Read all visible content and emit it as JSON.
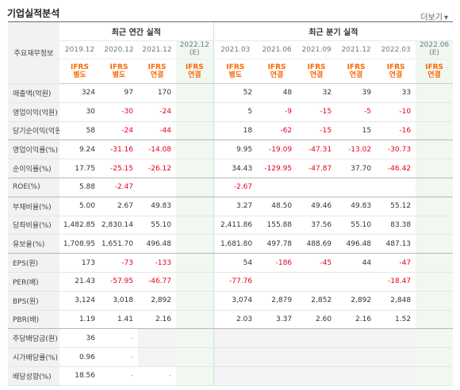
{
  "header": {
    "title": "기업실적분석",
    "more_label": "더보기",
    "more_arrow": "▾"
  },
  "table": {
    "corner_label": "주요재무정보",
    "annual_group": "최근 연간 실적",
    "quarter_group": "최근 분기 실적",
    "years": [
      {
        "line1": "2019.12",
        "line2": ""
      },
      {
        "line1": "2020.12",
        "line2": ""
      },
      {
        "line1": "2021.12",
        "line2": ""
      },
      {
        "line1": "2022.12",
        "line2": "(E)"
      },
      {
        "line1": "2021.03",
        "line2": ""
      },
      {
        "line1": "2021.06",
        "line2": ""
      },
      {
        "line1": "2021.09",
        "line2": ""
      },
      {
        "line1": "2021.12",
        "line2": ""
      },
      {
        "line1": "2022.03",
        "line2": ""
      },
      {
        "line1": "2022.06",
        "line2": "(E)"
      }
    ],
    "types": [
      {
        "line1": "IFRS",
        "line2": "별도"
      },
      {
        "line1": "IFRS",
        "line2": "별도"
      },
      {
        "line1": "IFRS",
        "line2": "연결"
      },
      {
        "line1": "IFRS",
        "line2": "연결"
      },
      {
        "line1": "IFRS",
        "line2": "별도"
      },
      {
        "line1": "IFRS",
        "line2": "연결"
      },
      {
        "line1": "IFRS",
        "line2": "연결"
      },
      {
        "line1": "IFRS",
        "line2": "연결"
      },
      {
        "line1": "IFRS",
        "line2": "연결"
      },
      {
        "line1": "IFRS",
        "line2": "연결"
      }
    ],
    "rows": [
      {
        "label": "매출액(억원)",
        "values": [
          "324",
          "97",
          "170",
          "",
          "52",
          "48",
          "32",
          "39",
          "33",
          ""
        ]
      },
      {
        "label": "영업이익(억원)",
        "values": [
          "30",
          "-30",
          "-24",
          "",
          "5",
          "-9",
          "-15",
          "-5",
          "-10",
          ""
        ]
      },
      {
        "label": "당기순이익(억원)",
        "values": [
          "58",
          "-24",
          "-44",
          "",
          "18",
          "-62",
          "-15",
          "15",
          "-16",
          ""
        ]
      },
      {
        "label": "영업이익률(%)",
        "values": [
          "9.24",
          "-31.16",
          "-14.08",
          "",
          "9.95",
          "-19.09",
          "-47.31",
          "-13.02",
          "-30.73",
          ""
        ]
      },
      {
        "label": "순이익률(%)",
        "values": [
          "17.75",
          "-25.15",
          "-26.12",
          "",
          "34.43",
          "-129.95",
          "-47.87",
          "37.70",
          "-46.42",
          ""
        ]
      },
      {
        "label": "ROE(%)",
        "values": [
          "5.88",
          "-2.47",
          "",
          "",
          "-2.67",
          "",
          "",
          "",
          "",
          ""
        ]
      },
      {
        "label": "부채비율(%)",
        "values": [
          "5.00",
          "2.67",
          "49.83",
          "",
          "3.27",
          "48.50",
          "49.46",
          "49.83",
          "55.12",
          ""
        ]
      },
      {
        "label": "당좌비율(%)",
        "values": [
          "1,482.85",
          "2,830.14",
          "55.10",
          "",
          "2,411.86",
          "155.88",
          "37.56",
          "55.10",
          "83.38",
          ""
        ]
      },
      {
        "label": "유보율(%)",
        "values": [
          "1,708.95",
          "1,651.70",
          "496.48",
          "",
          "1,681.80",
          "497.78",
          "488.69",
          "496.48",
          "487.13",
          ""
        ]
      },
      {
        "label": "EPS(원)",
        "values": [
          "173",
          "-73",
          "-133",
          "",
          "54",
          "-186",
          "-45",
          "44",
          "-47",
          ""
        ]
      },
      {
        "label": "PER(배)",
        "values": [
          "21.43",
          "-57.95",
          "-46.77",
          "",
          "-77.76",
          "",
          "",
          "",
          "-18.47",
          ""
        ]
      },
      {
        "label": "BPS(원)",
        "values": [
          "3,124",
          "3,018",
          "2,892",
          "",
          "3,074",
          "2,879",
          "2,852",
          "2,892",
          "2,848",
          ""
        ]
      },
      {
        "label": "PBR(배)",
        "values": [
          "1.19",
          "1.41",
          "2.16",
          "",
          "2.03",
          "3.37",
          "2.60",
          "2.16",
          "1.52",
          ""
        ]
      },
      {
        "label": "주당배당금(원)",
        "values": [
          "36",
          "-",
          "",
          "",
          "",
          "",
          "",
          "",
          "",
          ""
        ]
      },
      {
        "label": "시가배당률(%)",
        "values": [
          "0.96",
          "-",
          "",
          "",
          "",
          "",
          "",
          "",
          "",
          ""
        ]
      },
      {
        "label": "배당성향(%)",
        "values": [
          "18.56",
          "-",
          "-",
          "",
          "",
          "",
          "",
          "",
          "",
          ""
        ]
      }
    ]
  }
}
